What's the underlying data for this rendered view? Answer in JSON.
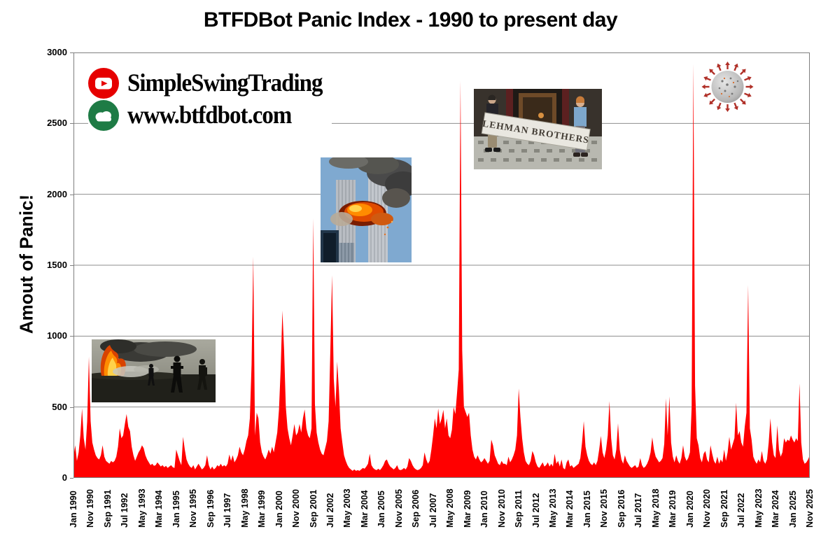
{
  "title": "BTFDBot Panic Index - 1990 to present day",
  "branding": {
    "channel_label": "SimpleSwingTrading",
    "site_label": "www.btfdbot.com",
    "youtube_icon_color": "#e60000",
    "cloud_icon_color": "#1e7b45"
  },
  "annotations": {
    "lehman_sign_text": "LEHMAN BROTHERS",
    "photos": [
      {
        "id": "gulf-war-soldiers-photo",
        "alt": "soldiers walking past a burning oil well, early 1990s"
      },
      {
        "id": "twin-towers-attack-photo",
        "alt": "World Trade Center towers with fireball and smoke, 2001"
      },
      {
        "id": "lehman-brothers-sign-photo",
        "alt": "two men carrying a Lehman Brothers sign, 2008"
      },
      {
        "id": "coronavirus-particle-photo",
        "alt": "coronavirus particle, 2020"
      }
    ]
  },
  "chart_data": {
    "type": "area",
    "title": "BTFDBot Panic Index - 1990 to present day",
    "xlabel": "",
    "ylabel": "Amout of Panic!",
    "ylim": [
      0,
      3000
    ],
    "yticks": [
      0,
      500,
      1000,
      1500,
      2000,
      2500,
      3000
    ],
    "grid": "horizontal",
    "legend": "none",
    "series_color": "#ff0000",
    "border_color": "#7f7f7f",
    "gridline_color": "#8e8e8e",
    "x_tick_interval_months": 10,
    "x_range": [
      "Jan 1990",
      "Nov 2025"
    ],
    "x_tick_labels": [
      "Jan 1990",
      "Nov 1990",
      "Sep 1991",
      "Jul 1992",
      "May 1993",
      "Mar 1994",
      "Jan 1995",
      "Nov 1995",
      "Sep 1996",
      "Jul 1997",
      "May 1998",
      "Mar 1999",
      "Jan 2000",
      "Nov 2000",
      "Sep 2001",
      "Jul 2002",
      "May 2003",
      "Mar 2004",
      "Jan 2005",
      "Nov 2005",
      "Sep 2006",
      "Jul 2007",
      "May 2008",
      "Mar 2009",
      "Jan 2010",
      "Nov 2010",
      "Sep 2011",
      "Jul 2012",
      "May 2013",
      "Mar 2014",
      "Jan 2015",
      "Nov 2015",
      "Sep 2016",
      "Jul 2017",
      "May 2018",
      "Mar 2019",
      "Jan 2020",
      "Nov 2020",
      "Sep 2021",
      "Jul 2022",
      "May 2023",
      "Mar 2024",
      "Jan 2025",
      "Nov 2025"
    ],
    "values_monthly": {
      "first_year": 1990,
      "last_point": "Nov 2025",
      "by_year": [
        [
          150,
          230,
          120,
          180,
          300,
          490,
          280,
          200,
          400,
          855,
          400,
          250
        ],
        [
          200,
          160,
          140,
          130,
          160,
          230,
          150,
          120,
          110,
          100,
          120,
          110
        ],
        [
          120,
          150,
          220,
          350,
          280,
          300,
          380,
          450,
          360,
          330,
          220,
          160
        ],
        [
          120,
          150,
          180,
          200,
          230,
          210,
          160,
          130,
          110,
          90,
          100,
          85
        ],
        [
          90,
          110,
          95,
          80,
          90,
          75,
          85,
          70,
          80,
          90,
          75,
          70
        ],
        [
          200,
          160,
          120,
          90,
          290,
          200,
          130,
          100,
          80,
          70,
          90,
          60
        ],
        [
          80,
          100,
          80,
          60,
          70,
          90,
          160,
          90,
          60,
          80,
          60,
          70
        ],
        [
          90,
          80,
          100,
          80,
          90,
          80,
          100,
          165,
          120,
          160,
          110,
          130
        ],
        [
          160,
          220,
          180,
          160,
          200,
          260,
          300,
          420,
          800,
          1560,
          300,
          460
        ],
        [
          420,
          250,
          180,
          150,
          130,
          160,
          200,
          170,
          220,
          180,
          250,
          320
        ],
        [
          480,
          770,
          1180,
          900,
          500,
          350,
          280,
          230,
          300,
          380,
          300,
          320
        ],
        [
          380,
          320,
          420,
          483,
          350,
          300,
          280,
          350,
          1830,
          520,
          320,
          250
        ],
        [
          200,
          170,
          160,
          210,
          260,
          400,
          900,
          1430,
          700,
          500,
          820,
          620
        ],
        [
          350,
          250,
          160,
          120,
          90,
          70,
          60,
          50,
          60,
          50,
          55,
          50
        ],
        [
          60,
          70,
          65,
          80,
          100,
          170,
          90,
          70,
          60,
          55,
          65,
          55
        ],
        [
          70,
          90,
          120,
          130,
          100,
          80,
          70,
          60,
          70,
          90,
          60,
          55
        ],
        [
          60,
          70,
          60,
          80,
          140,
          120,
          90,
          70,
          60,
          55,
          60,
          70
        ],
        [
          90,
          180,
          130,
          100,
          120,
          200,
          300,
          420,
          350,
          490,
          380,
          420
        ],
        [
          480,
          350,
          420,
          300,
          280,
          340,
          500,
          450,
          600,
          765,
          2800,
          900
        ],
        [
          500,
          465,
          430,
          460,
          300,
          200,
          150,
          130,
          160,
          130,
          110,
          120
        ],
        [
          140,
          120,
          100,
          120,
          270,
          230,
          160,
          130,
          100,
          90,
          120,
          100
        ],
        [
          100,
          90,
          150,
          110,
          130,
          160,
          200,
          300,
          630,
          430,
          280,
          180
        ],
        [
          120,
          100,
          90,
          120,
          190,
          160,
          110,
          80,
          70,
          90,
          110,
          80
        ],
        [
          90,
          110,
          80,
          100,
          80,
          170,
          100,
          120,
          80,
          130,
          70,
          60
        ],
        [
          110,
          130,
          80,
          90,
          70,
          80,
          90,
          100,
          140,
          250,
          400,
          220
        ],
        [
          160,
          120,
          100,
          90,
          110,
          90,
          120,
          200,
          296,
          180,
          140,
          200
        ],
        [
          300,
          542,
          280,
          160,
          130,
          200,
          385,
          200,
          130,
          100,
          160,
          120
        ],
        [
          100,
          80,
          70,
          80,
          90,
          70,
          80,
          140,
          90,
          70,
          80,
          100
        ],
        [
          130,
          180,
          286,
          200,
          150,
          130,
          110,
          120,
          140,
          240,
          560,
          300
        ],
        [
          575,
          250,
          150,
          110,
          160,
          120,
          100,
          140,
          230,
          150,
          120,
          140
        ],
        [
          180,
          500,
          2920,
          650,
          280,
          230,
          140,
          110,
          170,
          190,
          130,
          110
        ],
        [
          230,
          170,
          120,
          100,
          150,
          100,
          130,
          110,
          200,
          120,
          180,
          290
        ],
        [
          200,
          240,
          280,
          530,
          300,
          330,
          250,
          220,
          360,
          460,
          1360,
          350
        ],
        [
          270,
          150,
          120,
          100,
          130,
          110,
          190,
          120,
          100,
          130,
          250,
          420
        ],
        [
          250,
          160,
          140,
          370,
          200,
          150,
          180,
          280,
          250,
          270,
          260,
          300
        ],
        [
          270,
          250,
          280,
          260,
          665,
          250,
          130,
          100,
          110,
          130,
          160
        ]
      ]
    }
  }
}
